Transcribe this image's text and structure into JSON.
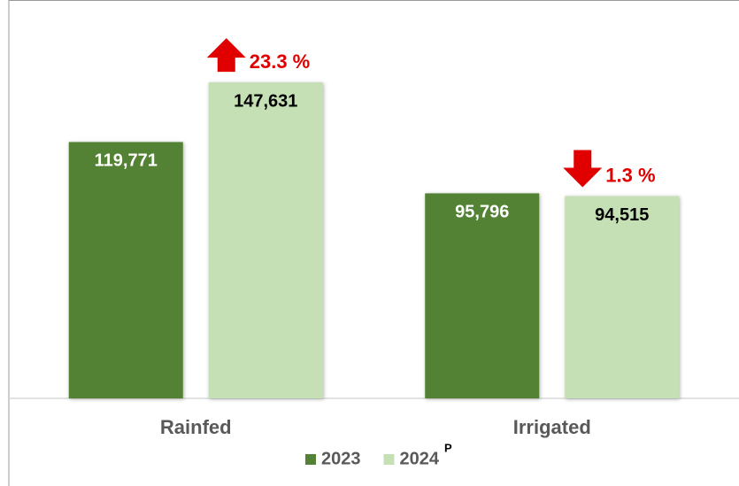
{
  "chart_data": {
    "type": "bar",
    "categories": [
      "Rainfed",
      "Irrigated"
    ],
    "series": [
      {
        "name": "2023",
        "color": "#548235",
        "label_color": "#ffffff",
        "values": [
          119771,
          95796
        ],
        "value_labels": [
          "119,771",
          "95,796"
        ]
      },
      {
        "name": "2024",
        "color": "#c5e0b4",
        "label_color": "#000000",
        "values": [
          147631,
          94515
        ],
        "value_labels": [
          "147,631",
          "94,515"
        ]
      }
    ],
    "legend_suffix": "P",
    "annotations": [
      {
        "text": "23.3 %",
        "arrow": "up",
        "color": "#e00000"
      },
      {
        "text": "1.3 %",
        "arrow": "down",
        "color": "#e00000"
      }
    ],
    "ylim": [
      0,
      170000
    ],
    "legend": "bottom"
  }
}
